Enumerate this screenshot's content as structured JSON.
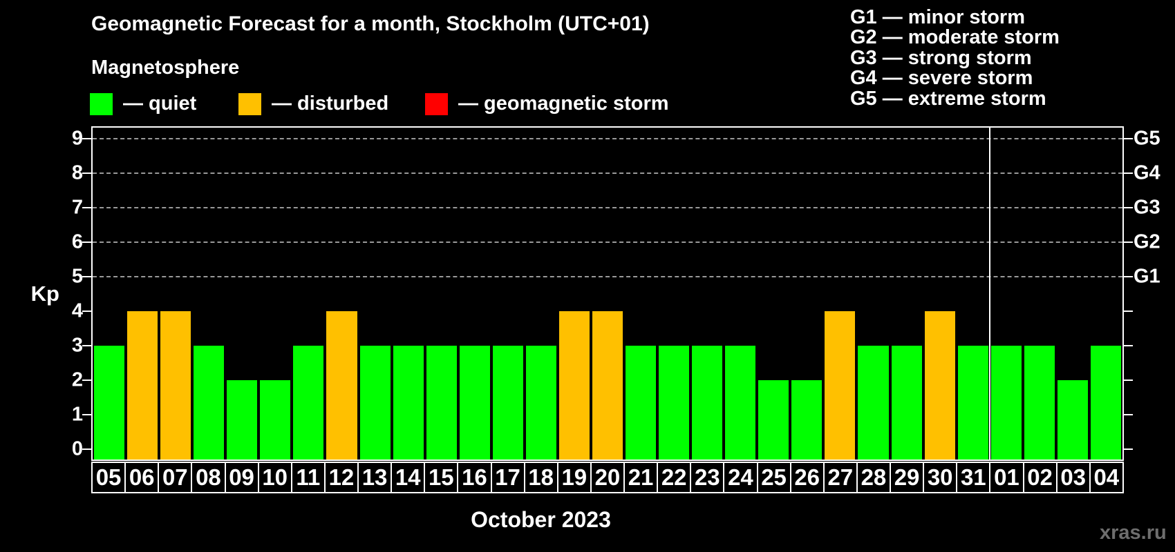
{
  "colors": {
    "background": "#000000",
    "text": "#ffffff",
    "grid": "#9a9a9a",
    "frame": "#ffffff",
    "watermark_text": "#6e6e6e"
  },
  "legend": {
    "items": [
      {
        "status": "quiet",
        "label": "— quiet",
        "color": "#00ff00"
      },
      {
        "status": "disturbed",
        "label": "— disturbed",
        "color": "#ffc000"
      },
      {
        "status": "storm",
        "label": "— geomagnetic storm",
        "color": "#ff0000"
      }
    ]
  },
  "storm_scale_legend": {
    "lines": [
      "G1 — minor storm",
      "G2 — moderate storm",
      "G3 — strong storm",
      "G4 — severe storm",
      "G5 — extreme storm"
    ]
  },
  "watermark": "xras.ru",
  "chart_data": {
    "type": "bar",
    "title": "Geomagnetic Forecast for a month, Stockholm (UTC+01)",
    "subtitle": "Magnetosphere",
    "xlabel": "October 2023",
    "ylabel": "Kp",
    "ylim": [
      -0.3,
      9.36
    ],
    "yticks": [
      0,
      1,
      2,
      3,
      4,
      5,
      6,
      7,
      8,
      9
    ],
    "gridlines_at_kp": [
      5,
      6,
      7,
      8,
      9
    ],
    "legend_position": "top",
    "right_axis_labels": [
      {
        "kp": 5,
        "label": "G1"
      },
      {
        "kp": 6,
        "label": "G2"
      },
      {
        "kp": 7,
        "label": "G3"
      },
      {
        "kp": 8,
        "label": "G4"
      },
      {
        "kp": 9,
        "label": "G5"
      }
    ],
    "month_separator_after_index": 27,
    "points": [
      {
        "date": "05",
        "kp": 3,
        "status": "quiet"
      },
      {
        "date": "06",
        "kp": 4,
        "status": "disturbed"
      },
      {
        "date": "07",
        "kp": 4,
        "status": "disturbed"
      },
      {
        "date": "08",
        "kp": 3,
        "status": "quiet"
      },
      {
        "date": "09",
        "kp": 2,
        "status": "quiet"
      },
      {
        "date": "10",
        "kp": 2,
        "status": "quiet"
      },
      {
        "date": "11",
        "kp": 3,
        "status": "quiet"
      },
      {
        "date": "12",
        "kp": 4,
        "status": "disturbed"
      },
      {
        "date": "13",
        "kp": 3,
        "status": "quiet"
      },
      {
        "date": "14",
        "kp": 3,
        "status": "quiet"
      },
      {
        "date": "15",
        "kp": 3,
        "status": "quiet"
      },
      {
        "date": "16",
        "kp": 3,
        "status": "quiet"
      },
      {
        "date": "17",
        "kp": 3,
        "status": "quiet"
      },
      {
        "date": "18",
        "kp": 3,
        "status": "quiet"
      },
      {
        "date": "19",
        "kp": 4,
        "status": "disturbed"
      },
      {
        "date": "20",
        "kp": 4,
        "status": "disturbed"
      },
      {
        "date": "21",
        "kp": 3,
        "status": "quiet"
      },
      {
        "date": "22",
        "kp": 3,
        "status": "quiet"
      },
      {
        "date": "23",
        "kp": 3,
        "status": "quiet"
      },
      {
        "date": "24",
        "kp": 3,
        "status": "quiet"
      },
      {
        "date": "25",
        "kp": 2,
        "status": "quiet"
      },
      {
        "date": "26",
        "kp": 2,
        "status": "quiet"
      },
      {
        "date": "27",
        "kp": 4,
        "status": "disturbed"
      },
      {
        "date": "28",
        "kp": 3,
        "status": "quiet"
      },
      {
        "date": "29",
        "kp": 3,
        "status": "quiet"
      },
      {
        "date": "30",
        "kp": 4,
        "status": "disturbed"
      },
      {
        "date": "31",
        "kp": 3,
        "status": "quiet"
      },
      {
        "date": "01",
        "kp": 3,
        "status": "quiet"
      },
      {
        "date": "02",
        "kp": 3,
        "status": "quiet"
      },
      {
        "date": "03",
        "kp": 2,
        "status": "quiet"
      },
      {
        "date": "04",
        "kp": 3,
        "status": "quiet"
      }
    ]
  }
}
